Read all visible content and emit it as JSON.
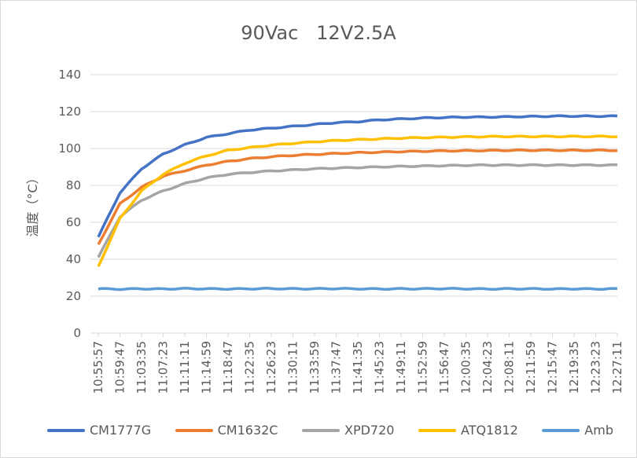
{
  "chart_data": {
    "type": "line",
    "title": "90Vac   12V2.5A",
    "ylabel": "温度（°C）",
    "xlabel": "",
    "ylim": [
      0,
      140
    ],
    "yticks": [
      0,
      20,
      40,
      60,
      80,
      100,
      120,
      140
    ],
    "categories": [
      "10:55:57",
      "10:59:47",
      "11:03:35",
      "11:07:23",
      "11:11:11",
      "11:14:59",
      "11:18:47",
      "11:22:35",
      "11:26:23",
      "11:30:11",
      "11:33:59",
      "11:37:47",
      "11:41:35",
      "11:45:23",
      "11:49:11",
      "11:52:59",
      "11:56:47",
      "12:00:35",
      "12:04:23",
      "12:08:11",
      "12:11:59",
      "12:15:47",
      "12:19:35",
      "12:23:23",
      "12:27:11"
    ],
    "legend_position": "bottom",
    "grid": true,
    "series": [
      {
        "name": "CM1777G",
        "color": "#4472c4",
        "values": [
          52,
          76,
          89,
          97,
          102,
          106,
          108,
          110,
          111,
          112,
          113,
          114,
          114.5,
          115.5,
          116,
          116.5,
          116.8,
          117,
          117,
          117.2,
          117.3,
          117.5,
          117.5,
          117.5,
          117.5
        ]
      },
      {
        "name": "CM1632C",
        "color": "#ed7d31",
        "values": [
          48,
          70,
          79,
          85,
          88,
          91,
          93,
          94.5,
          95.5,
          96.3,
          96.8,
          97.3,
          97.7,
          98,
          98.3,
          98.5,
          98.7,
          98.8,
          98.9,
          99,
          99,
          99,
          99,
          99,
          99
        ]
      },
      {
        "name": "XPD720",
        "color": "#a5a5a5",
        "values": [
          41,
          63,
          72,
          77,
          81,
          84,
          86,
          87,
          87.8,
          88.4,
          89,
          89.4,
          89.7,
          90,
          90.3,
          90.5,
          90.7,
          90.9,
          91,
          91,
          91,
          91,
          91,
          91,
          91
        ]
      },
      {
        "name": "ATQ1812",
        "color": "#ffc000",
        "values": [
          36,
          62,
          77,
          86,
          92,
          96,
          99,
          100.5,
          101.8,
          102.8,
          103.6,
          104.3,
          104.8,
          105.2,
          105.6,
          105.9,
          106.1,
          106.3,
          106.4,
          106.5,
          106.5,
          106.5,
          106.5,
          106.5,
          106.5
        ]
      },
      {
        "name": "Amb",
        "color": "#5b9bd5",
        "values": [
          24,
          23.8,
          24,
          23.9,
          24.1,
          24,
          23.9,
          24,
          24.1,
          24,
          24,
          24.1,
          24,
          23.9,
          24,
          24,
          24.1,
          24,
          23.9,
          24,
          24,
          23.9,
          24,
          23.9,
          24
        ]
      }
    ]
  }
}
